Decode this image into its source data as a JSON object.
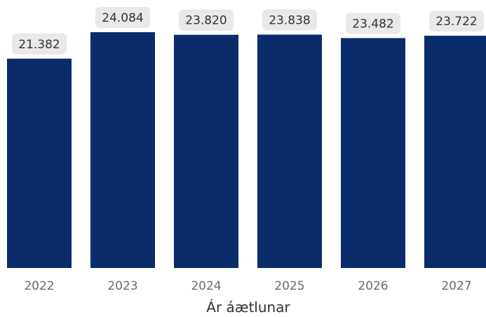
{
  "chart_data": {
    "type": "bar",
    "categories": [
      "2022",
      "2023",
      "2024",
      "2025",
      "2026",
      "2027"
    ],
    "values": [
      21382,
      24084,
      23820,
      23838,
      23482,
      23722
    ],
    "value_labels": [
      "21.382",
      "24.084",
      "23.820",
      "23.838",
      "23.482",
      "23.722"
    ],
    "xlabel": "Ár áætlunar",
    "ylabel": "",
    "ylim": [
      0,
      24084
    ],
    "bar_color": "#0b2c6b",
    "label_bg": "#e9e9e9",
    "grid": false
  }
}
